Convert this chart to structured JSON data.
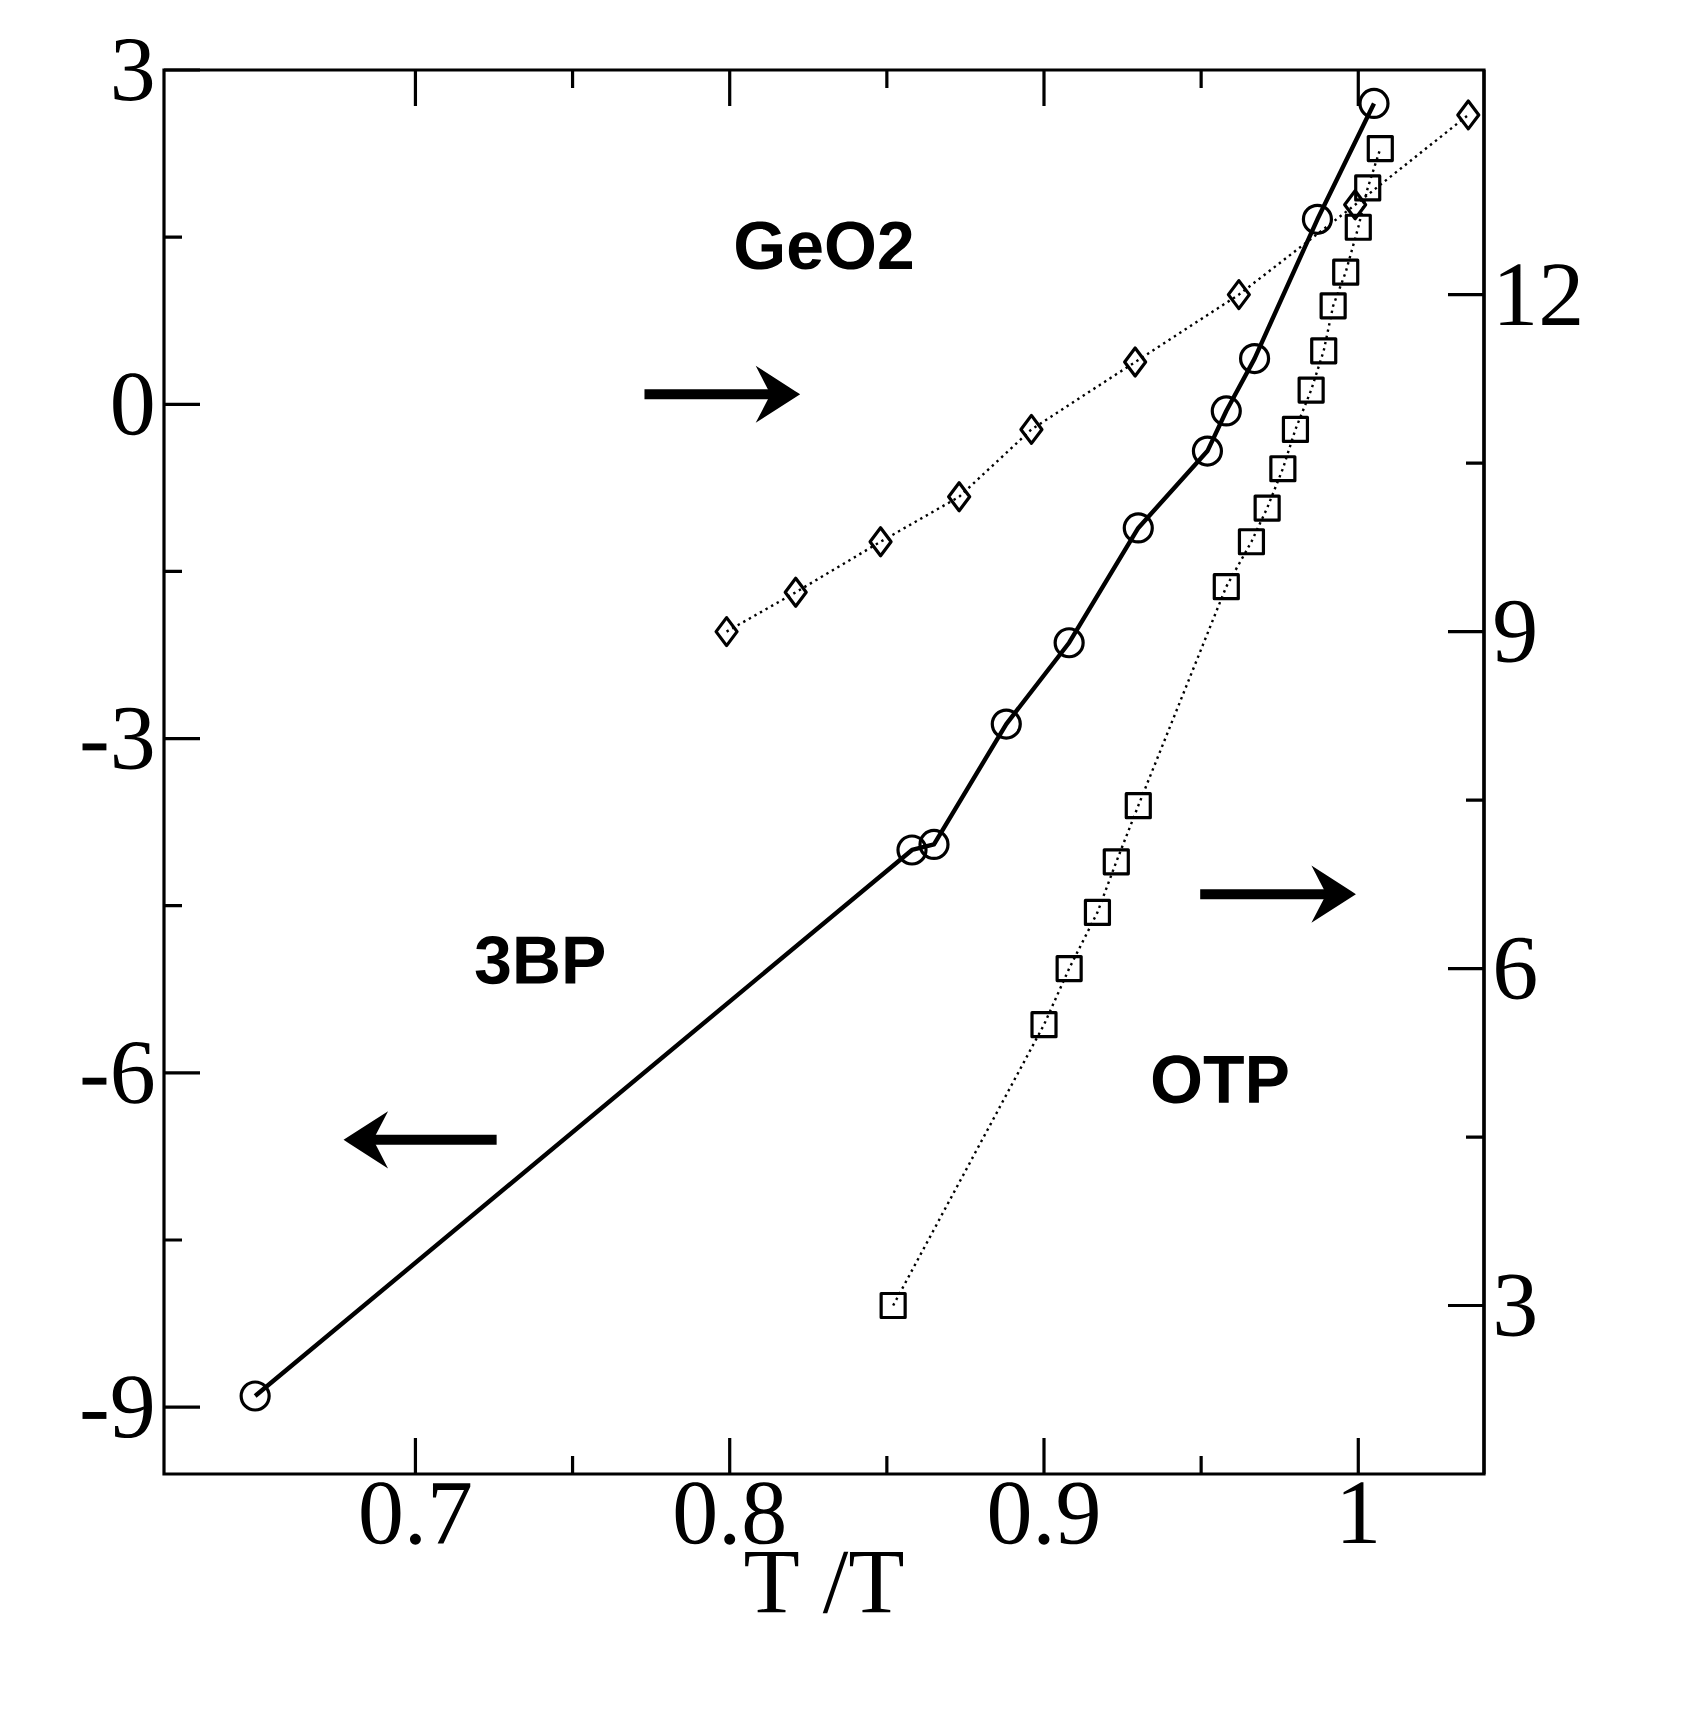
{
  "chart_data": {
    "type": "line",
    "xlabel": "T /T",
    "xlim": [
      0.62,
      1.04
    ],
    "xticks": [
      0.7,
      0.8,
      0.9,
      1
    ],
    "ylim": [
      -9.6,
      3
    ],
    "yticks": [
      -9,
      -6,
      -3,
      0,
      3
    ],
    "y2lim": [
      1.5,
      14
    ],
    "y2ticks": [
      3,
      6,
      9,
      12
    ],
    "grid": false,
    "series": [
      {
        "name": "3BP",
        "color": "#000000",
        "marker": "circle",
        "line_style": "solid",
        "x": [
          0.649,
          0.858,
          0.865,
          0.888,
          0.908,
          0.93,
          0.952,
          0.958,
          0.967,
          0.987,
          1.005
        ],
        "values": [
          -8.9,
          -4.0,
          -3.95,
          -2.87,
          -2.14,
          -1.11,
          -0.42,
          -0.06,
          0.41,
          1.66,
          2.7
        ]
      },
      {
        "name": "GeO2",
        "color": "#000000",
        "marker": "diamond",
        "line_style": "dotted",
        "axis": "y2",
        "x": [
          0.799,
          0.821,
          0.848,
          0.873,
          0.896,
          0.929,
          0.962,
          0.999,
          1.035
        ],
        "values": [
          9.0,
          9.35,
          9.8,
          10.2,
          10.8,
          11.4,
          12.0,
          12.8,
          13.6
        ]
      },
      {
        "name": "OTP",
        "color": "#000000",
        "marker": "square",
        "line_style": "dotted",
        "axis": "y2",
        "x": [
          0.852,
          0.9,
          0.908,
          0.917,
          0.923,
          0.93,
          0.958,
          0.966,
          0.971,
          0.976,
          0.98,
          0.985,
          0.989,
          0.992,
          0.996,
          1.0,
          1.003,
          1.007
        ],
        "values": [
          3.0,
          5.5,
          6.0,
          6.5,
          6.95,
          7.45,
          9.4,
          9.8,
          10.1,
          10.45,
          10.8,
          11.15,
          11.5,
          11.9,
          12.2,
          12.6,
          12.95,
          13.3
        ]
      }
    ]
  }
}
